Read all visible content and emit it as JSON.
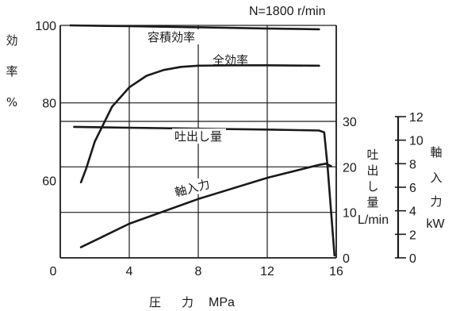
{
  "chart_data": {
    "type": "line",
    "condition": "N=1800 r/min",
    "xlabel": [
      "圧",
      "力",
      "MPa"
    ],
    "xlim": [
      0,
      16
    ],
    "x_ticks": [
      "0",
      "4",
      "8",
      "12",
      "16"
    ],
    "efficiency_axis": {
      "label": [
        "効",
        "率",
        "%"
      ],
      "range": [
        40,
        100
      ],
      "ticks": [
        "60",
        "80",
        "100"
      ]
    },
    "flow_axis": {
      "label": [
        "吐",
        "出",
        "し",
        "量"
      ],
      "unit": "L/min",
      "range": [
        0,
        30
      ],
      "ticks": [
        "0",
        "10",
        "20",
        "30"
      ]
    },
    "power_axis": {
      "label": [
        "軸",
        "入",
        "力"
      ],
      "unit": "kW",
      "range": [
        0,
        12
      ],
      "ticks": [
        "0",
        "2",
        "4",
        "6",
        "8",
        "10",
        "12"
      ]
    },
    "series": [
      {
        "name": "容積効率",
        "axis": "efficiency",
        "x": [
          0.6,
          4,
          8,
          12,
          15
        ],
        "y": [
          100,
          99.8,
          99.5,
          99.2,
          99
        ]
      },
      {
        "name": "全効率",
        "axis": "efficiency",
        "x": [
          1.2,
          1.5,
          2,
          3,
          4,
          5,
          6,
          7,
          8,
          10,
          12,
          15
        ],
        "y": [
          59.5,
          63,
          70,
          79,
          84,
          87,
          88.5,
          89.3,
          89.6,
          89.7,
          89.7,
          89.6
        ]
      },
      {
        "name": "吐出し量",
        "axis": "flow",
        "x": [
          0.8,
          4,
          8,
          12,
          15,
          15.3,
          15.5,
          15.9
        ],
        "y": [
          28.8,
          28.6,
          28.4,
          28.2,
          28,
          27.6,
          20,
          0.5
        ]
      },
      {
        "name": "軸入力",
        "axis": "power",
        "x": [
          1.2,
          4,
          8,
          12,
          15,
          15.4,
          15.7
        ],
        "y": [
          0.9,
          2.9,
          5,
          6.8,
          7.9,
          8,
          7.8
        ]
      }
    ]
  }
}
